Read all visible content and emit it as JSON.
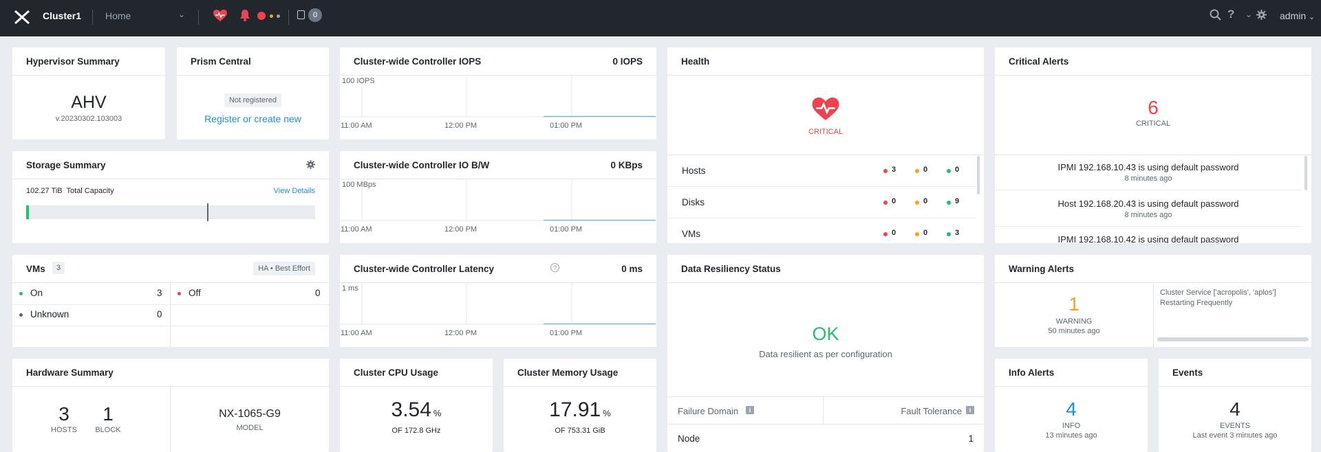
{
  "topbar": {
    "cluster_name": "Cluster1",
    "home_label": "Home",
    "tasks_count": "0",
    "admin_label": "admin",
    "icons": [
      "nutanix-logo-icon",
      "health-heart-icon",
      "alerts-bell-icon",
      "tasks-icon",
      "search-icon",
      "help-icon",
      "settings-gear-icon"
    ]
  },
  "hypervisor": {
    "title": "Hypervisor Summary",
    "name": "AHV",
    "version": "v.20230302.103003"
  },
  "prism_central": {
    "title": "Prism Central",
    "status": "Not registered",
    "link": "Register or create new"
  },
  "storage": {
    "title": "Storage Summary",
    "capacity": "102.27 TiB",
    "capacity_label": "Total Capacity",
    "view_details": "View Details"
  },
  "iops": {
    "title": "Cluster-wide Controller IOPS",
    "value": "0 IOPS",
    "y_label": "100 IOPS",
    "x_labels": [
      "11:00 AM",
      "12:00 PM",
      "01:00 PM"
    ]
  },
  "iobw": {
    "title": "Cluster-wide Controller IO B/W",
    "value": "0 KBps",
    "y_label": "100 MBps",
    "x_labels": [
      "11:00 AM",
      "12:00 PM",
      "01:00 PM"
    ]
  },
  "latency": {
    "title": "Cluster-wide Controller Latency",
    "value": "0 ms",
    "y_label": "1 ms",
    "x_labels": [
      "11:00 AM",
      "12:00 PM",
      "01:00 PM"
    ]
  },
  "health": {
    "title": "Health",
    "status": "CRITICAL",
    "rows": [
      {
        "label": "Hosts",
        "red": "3",
        "yellow": "0",
        "green": "0"
      },
      {
        "label": "Disks",
        "red": "0",
        "yellow": "0",
        "green": "9"
      },
      {
        "label": "VMs",
        "red": "0",
        "yellow": "0",
        "green": "3"
      }
    ]
  },
  "critical_alerts": {
    "title": "Critical Alerts",
    "count": "6",
    "label": "CRITICAL",
    "items": [
      {
        "message": "IPMI 192.168.10.43 is using default password",
        "time": "8 minutes ago"
      },
      {
        "message": "Host 192.168.20.43 is using default password",
        "time": "8 minutes ago"
      },
      {
        "message": "IPMI 192.168.10.42 is using default password",
        "time": ""
      }
    ]
  },
  "vms": {
    "title": "VMs",
    "count": "3",
    "ha_label": "HA",
    "ha_mode": "Best Effort",
    "on_label": "On",
    "on_value": "3",
    "off_label": "Off",
    "off_value": "0",
    "unknown_label": "Unknown",
    "unknown_value": "0"
  },
  "data_resiliency": {
    "title": "Data Resiliency Status",
    "status": "OK",
    "description": "Data resilient as per configuration",
    "failure_domain_label": "Failure Domain",
    "fault_tolerance_label": "Fault Tolerance",
    "row_label": "Node",
    "row_value": "1"
  },
  "warning_alerts": {
    "title": "Warning Alerts",
    "count": "1",
    "label": "WARNING",
    "time": "50 minutes ago",
    "message": "Cluster Service ['acropolis', 'aplos'] Restarting Frequently"
  },
  "hardware": {
    "title": "Hardware Summary",
    "hosts": "3",
    "hosts_label": "HOSTS",
    "blocks": "1",
    "blocks_label": "BLOCK",
    "model": "NX-1065-G9",
    "model_label": "MODEL"
  },
  "cpu": {
    "title": "Cluster CPU Usage",
    "value": "3.54",
    "unit": "%",
    "detail": "OF 172.8 GHz"
  },
  "memory": {
    "title": "Cluster Memory Usage",
    "value": "17.91",
    "unit": "%",
    "detail": "OF 753.31 GiB"
  },
  "info_alerts": {
    "title": "Info Alerts",
    "count": "4",
    "label": "INFO",
    "time": "13 minutes ago"
  },
  "events": {
    "title": "Events",
    "count": "4",
    "label": "EVENTS",
    "time": "Last event 3 minutes ago"
  },
  "colors": {
    "critical": "#f0424e",
    "warning": "#f4a321",
    "ok": "#1ec26b",
    "info": "#1b8fe0",
    "topbar": "#22272e"
  }
}
